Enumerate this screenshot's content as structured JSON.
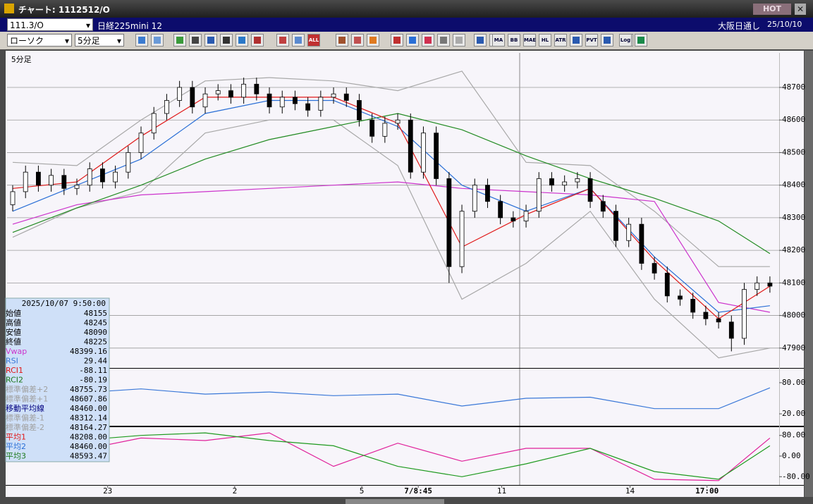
{
  "window": {
    "title": "チャート: 1112512/O",
    "hot": "HOT"
  },
  "toolbar": {
    "symbol": "111.3/O",
    "instrument": "日経225mini 12",
    "session": "大阪日通し",
    "date": "25/10/10",
    "chart_style": "ローソク",
    "interval": "5分足",
    "buttons": [
      "ALL",
      "MA",
      "BB",
      "MAE",
      "HL",
      "ATR",
      "PVT",
      "Log"
    ]
  },
  "chart_data": [
    {
      "type": "candlestick",
      "label": "5分足",
      "up_color": "#ffffff",
      "down_color": "#000000",
      "open": [
        48340,
        48380,
        48440,
        48400,
        48430,
        48390,
        48400,
        48450,
        48410,
        48440,
        48500,
        48560,
        48620,
        48660,
        48700,
        48640,
        48680,
        48690,
        48670,
        48710,
        48680,
        48640,
        48670,
        48650,
        48630,
        48670,
        48680,
        48660,
        48600,
        48550,
        48590,
        48600,
        48440,
        48560,
        48420,
        48150,
        48320,
        48400,
        48350,
        48300,
        48290,
        48320,
        48420,
        48400,
        48410,
        48420,
        48350,
        48320,
        48230,
        48280,
        48160,
        48130,
        48060,
        48050,
        48010,
        47990,
        47980,
        47930,
        48080,
        48100
      ],
      "high": [
        48400,
        48460,
        48460,
        48450,
        48450,
        48420,
        48470,
        48470,
        48460,
        48520,
        48580,
        48640,
        48680,
        48720,
        48720,
        48700,
        48710,
        48710,
        48730,
        48730,
        48700,
        48690,
        48690,
        48670,
        48690,
        48700,
        48700,
        48680,
        48620,
        48610,
        48620,
        48620,
        48580,
        48580,
        48440,
        48340,
        48420,
        48420,
        48370,
        48320,
        48340,
        48440,
        48440,
        48430,
        48440,
        48440,
        48370,
        48340,
        48300,
        48300,
        48180,
        48150,
        48080,
        48070,
        48030,
        48010,
        48000,
        48100,
        48120,
        48120
      ],
      "low": [
        48320,
        48360,
        48380,
        48380,
        48370,
        48370,
        48380,
        48390,
        48390,
        48420,
        48480,
        48540,
        48600,
        48640,
        48620,
        48620,
        48660,
        48650,
        48650,
        48660,
        48620,
        48620,
        48630,
        48610,
        48610,
        48650,
        48640,
        48580,
        48530,
        48530,
        48570,
        48420,
        48420,
        48400,
        48100,
        48130,
        48300,
        48330,
        48280,
        48270,
        48270,
        48300,
        48380,
        48380,
        48390,
        48330,
        48300,
        48210,
        48210,
        48140,
        48110,
        48040,
        48030,
        47990,
        47970,
        47960,
        47890,
        47910,
        48060,
        48070
      ],
      "close": [
        48380,
        48440,
        48400,
        48430,
        48390,
        48400,
        48450,
        48410,
        48440,
        48500,
        48560,
        48620,
        48660,
        48700,
        48640,
        48680,
        48690,
        48670,
        48710,
        48680,
        48640,
        48670,
        48650,
        48630,
        48670,
        48680,
        48660,
        48600,
        48550,
        48590,
        48600,
        48440,
        48560,
        48420,
        48150,
        48320,
        48400,
        48350,
        48300,
        48290,
        48320,
        48420,
        48400,
        48410,
        48420,
        48350,
        48320,
        48230,
        48280,
        48160,
        48130,
        48060,
        48050,
        48010,
        47990,
        47980,
        47930,
        48080,
        48100,
        48090
      ],
      "overlays": [
        {
          "color": "#a8a8a8",
          "x": [
            0,
            5,
            10,
            15,
            20,
            25,
            30,
            35,
            40,
            45,
            50,
            55,
            59
          ],
          "values": [
            48470,
            48460,
            48600,
            48720,
            48730,
            48720,
            48690,
            48750,
            48470,
            48460,
            48320,
            48150,
            48150
          ]
        },
        {
          "color": "#a8a8a8",
          "x": [
            0,
            5,
            10,
            15,
            20,
            25,
            30,
            35,
            40,
            45,
            50,
            55,
            59
          ],
          "values": [
            48240,
            48330,
            48380,
            48560,
            48600,
            48600,
            48460,
            48050,
            48160,
            48320,
            48050,
            47870,
            47900
          ]
        },
        {
          "color": "#cc33cc",
          "x": [
            0,
            5,
            10,
            15,
            20,
            25,
            30,
            35,
            40,
            45,
            50,
            55,
            59
          ],
          "values": [
            48280,
            48340,
            48370,
            48380,
            48390,
            48400,
            48410,
            48390,
            48380,
            48370,
            48350,
            48040,
            48010
          ]
        },
        {
          "color": "#228b22",
          "x": [
            0,
            5,
            10,
            15,
            20,
            25,
            30,
            35,
            40,
            45,
            50,
            55,
            59
          ],
          "values": [
            48255,
            48330,
            48400,
            48480,
            48540,
            48580,
            48620,
            48570,
            48490,
            48420,
            48360,
            48290,
            48190
          ]
        },
        {
          "color": "#2a6fd6",
          "x": [
            0,
            5,
            10,
            15,
            20,
            25,
            30,
            35,
            40,
            45,
            50,
            55,
            59
          ],
          "values": [
            48320,
            48400,
            48480,
            48620,
            48660,
            48660,
            48580,
            48400,
            48320,
            48390,
            48180,
            48010,
            48030
          ]
        },
        {
          "color": "#e01818",
          "x": [
            0,
            5,
            10,
            15,
            20,
            25,
            30,
            35,
            40,
            45,
            50,
            55,
            59
          ],
          "values": [
            48390,
            48410,
            48550,
            48670,
            48670,
            48670,
            48590,
            48210,
            48310,
            48390,
            48170,
            47990,
            48090
          ]
        }
      ],
      "xlim": [
        -0.44,
        59.72
      ],
      "ylim": [
        47839,
        48806
      ],
      "yticks": [
        47900,
        48000,
        48100,
        48200,
        48300,
        48400,
        48500,
        48600,
        48700
      ],
      "grid": true,
      "xticks": [
        {
          "value": 7.4,
          "label": "23"
        },
        {
          "value": 17.3,
          "label": "2"
        },
        {
          "value": 27.2,
          "label": "5"
        },
        {
          "value": 31.6,
          "label": "7/8:45"
        },
        {
          "value": 38.1,
          "label": "11"
        },
        {
          "value": 48.1,
          "label": "14"
        },
        {
          "value": 54.1,
          "label": "17:00"
        }
      ]
    },
    {
      "type": "line",
      "color": "#3a78d8",
      "x": [
        0,
        5,
        10,
        15,
        20,
        25,
        30,
        35,
        40,
        45,
        50,
        55,
        59
      ],
      "values": [
        55,
        60,
        68,
        58,
        62,
        55,
        58,
        35,
        50,
        52,
        30,
        30,
        70
      ],
      "xlim": [
        -0.44,
        59.72
      ],
      "ylim": [
        -3,
        107
      ],
      "yticks": [
        {
          "value": 80,
          "label": "80.00"
        },
        {
          "value": 20,
          "label": "20.00"
        }
      ]
    },
    {
      "type": "line",
      "x": [
        0,
        5,
        10,
        15,
        20,
        25,
        30,
        35,
        40,
        45,
        50,
        55,
        59
      ],
      "series": [
        {
          "color": "#e0209a",
          "values": [
            40,
            20,
            70,
            60,
            90,
            -40,
            50,
            -20,
            30,
            30,
            -90,
            -95,
            70
          ]
        },
        {
          "color": "#1e9a1e",
          "values": [
            30,
            60,
            80,
            90,
            60,
            40,
            -40,
            -80,
            -30,
            30,
            -60,
            -90,
            40
          ]
        }
      ],
      "xlim": [
        -0.44,
        59.72
      ],
      "ylim": [
        -112,
        112
      ],
      "yticks": [
        {
          "value": 80,
          "label": "80.00"
        },
        {
          "value": 0,
          "label": "0.00"
        },
        {
          "value": -80,
          "label": "-80.00"
        }
      ]
    }
  ],
  "info_box": {
    "datetime": "2025/10/07 9:50:00",
    "rows": [
      {
        "label": "始値",
        "value": "48155",
        "color": "#000000"
      },
      {
        "label": "高値",
        "value": "48245",
        "color": "#000000"
      },
      {
        "label": "安値",
        "value": "48090",
        "color": "#000000"
      },
      {
        "label": "終値",
        "value": "48225",
        "color": "#000000"
      },
      {
        "label": "Vwap",
        "value": "48399.16",
        "color": "#cc33cc"
      },
      {
        "label": "RSI",
        "value": "29.44",
        "color": "#3a78d8"
      },
      {
        "label": "RCI1",
        "value": "-88.11",
        "color": "#e01818"
      },
      {
        "label": "RCI2",
        "value": "-80.19",
        "color": "#1e7a1e"
      },
      {
        "label": "標準偏差+2",
        "value": "48755.73",
        "color": "#a0a0a0"
      },
      {
        "label": "標準偏差+1",
        "value": "48607.86",
        "color": "#a0a0a0"
      },
      {
        "label": "移動平均線",
        "value": "48460.00",
        "color": "#000080"
      },
      {
        "label": "標準偏差-1",
        "value": "48312.14",
        "color": "#a0a0a0"
      },
      {
        "label": "標準偏差-2",
        "value": "48164.27",
        "color": "#a0a0a0"
      },
      {
        "label": "平均1",
        "value": "48208.00",
        "color": "#e01818"
      },
      {
        "label": "平均2",
        "value": "48460.00",
        "color": "#2a6fd6"
      },
      {
        "label": "平均3",
        "value": "48593.47",
        "color": "#1e7a1e"
      }
    ]
  }
}
